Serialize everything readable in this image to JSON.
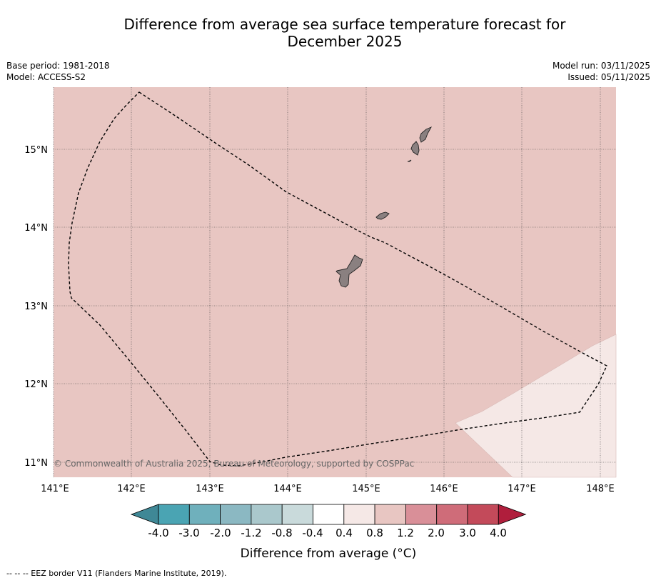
{
  "title": {
    "line1": "Difference from average sea surface temperature forecast for",
    "line2": "December 2025"
  },
  "meta": {
    "base_period": "Base period: 1981-2018",
    "model": "Model: ACCESS-S2",
    "model_run": "Model run: 03/11/2025",
    "issued": "Issued: 05/11/2025"
  },
  "map": {
    "lon_labels": [
      "141°E",
      "142°E",
      "143°E",
      "144°E",
      "145°E",
      "146°E",
      "147°E",
      "148°E"
    ],
    "lat_labels": [
      "15°N",
      "14°N",
      "13°N",
      "12°N",
      "11°N"
    ],
    "copyright": "© Commonwealth of Australia 2025, Bureau of Meteorology, supported by COSPPac",
    "colors": {
      "ocean_main": "#e8c6c2",
      "ocean_low": "#f5e8e6",
      "land": "#8a8080",
      "eez_line": "#000000"
    }
  },
  "colorbar": {
    "labels": [
      "-4.0",
      "-3.0",
      "-2.0",
      "-1.2",
      "-0.8",
      "-0.4",
      "0.4",
      "0.8",
      "1.2",
      "2.0",
      "3.0",
      "4.0"
    ],
    "colors": [
      "#3f8896",
      "#4aa4b3",
      "#6fb0bc",
      "#8bb8c2",
      "#aac8cc",
      "#c9dadb",
      "#ffffff",
      "#f5e8e6",
      "#e8c6c2",
      "#d98f98",
      "#cf6c79",
      "#c34a5a",
      "#b01e3c"
    ],
    "title": "Difference from average (°C)"
  },
  "footnote": "--  --  -- EEZ border V11 (Flanders Marine Institute, 2019)."
}
